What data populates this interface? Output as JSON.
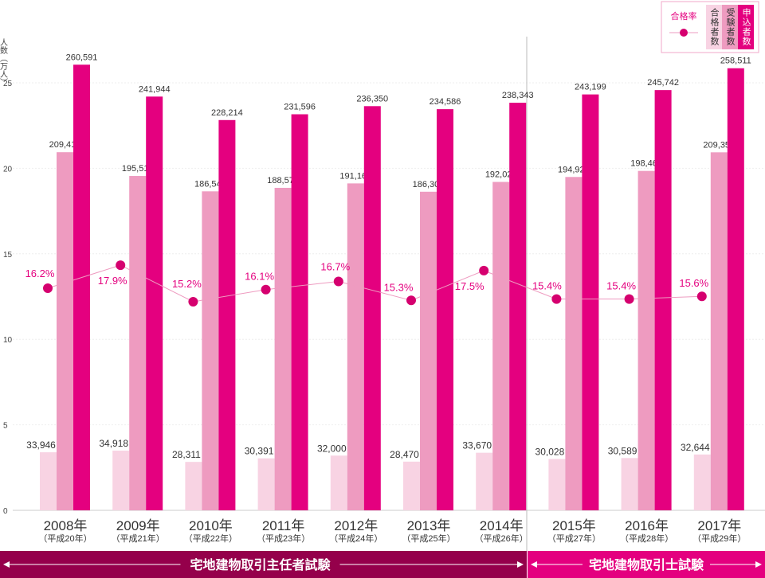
{
  "chart_data": {
    "type": "bar",
    "ylabel": "人数（万人）",
    "ylim": [
      0,
      25
    ],
    "yticks": [
      0,
      5,
      10,
      15,
      20,
      25
    ],
    "grid": true,
    "legend_position": "top-right",
    "categories": [
      "2008年",
      "2009年",
      "2010年",
      "2011年",
      "2012年",
      "2013年",
      "2014年",
      "2015年",
      "2016年",
      "2017年"
    ],
    "era_labels": [
      "（平成20年）",
      "（平成21年）",
      "（平成22年）",
      "（平成23年）",
      "（平成24年）",
      "（平成25年）",
      "（平成26年）",
      "（平成27年）",
      "（平成28年）",
      "（平成29年）"
    ],
    "series": [
      {
        "name": "合格者数",
        "color": "#f8d3e3",
        "values": [
          33946,
          34918,
          28311,
          30391,
          32000,
          28470,
          33670,
          30028,
          30589,
          32644
        ],
        "labels": [
          "33,946",
          "34,918",
          "28,311",
          "30,391",
          "32,000",
          "28,470",
          "33,670",
          "30,028",
          "30,589",
          "32,644"
        ]
      },
      {
        "name": "受験者数",
        "color": "#ee9bc0",
        "values": [
          209415,
          195515,
          186542,
          188572,
          191169,
          186304,
          192029,
          194926,
          198463,
          209354
        ],
        "labels": [
          "209,415",
          "195,515",
          "186,542",
          "188,572",
          "191,169",
          "186,304",
          "192,029",
          "194,926",
          "198,463",
          "209,354"
        ]
      },
      {
        "name": "申込者数",
        "color": "#e4007f",
        "values": [
          260591,
          241944,
          228214,
          231596,
          236350,
          234586,
          238343,
          243199,
          245742,
          258511
        ],
        "labels": [
          "260,591",
          "241,944",
          "228,214",
          "231,596",
          "236,350",
          "234,586",
          "238,343",
          "243,199",
          "245,742",
          "258,511"
        ]
      },
      {
        "name": "合格率",
        "type": "line",
        "color": "#e4007f",
        "values": [
          16.2,
          17.9,
          15.2,
          16.1,
          16.7,
          15.3,
          17.5,
          15.4,
          15.4,
          15.6
        ],
        "labels": [
          "16.2%",
          "17.9%",
          "15.2%",
          "16.1%",
          "16.7%",
          "15.3%",
          "17.5%",
          "15.4%",
          "15.4%",
          "15.6%"
        ]
      }
    ],
    "legend": {
      "rate": "合格率",
      "passers": "合格者数",
      "examinees": "受験者数",
      "applicants": "申込者数"
    },
    "periods": [
      {
        "label": "宅地建物取引主任者試験",
        "color": "#95004b",
        "range": [
          "2008年",
          "2014年"
        ]
      },
      {
        "label": "宅地建物取引士試験",
        "color": "#e4007f",
        "range": [
          "2015年",
          "2017年"
        ]
      }
    ]
  }
}
